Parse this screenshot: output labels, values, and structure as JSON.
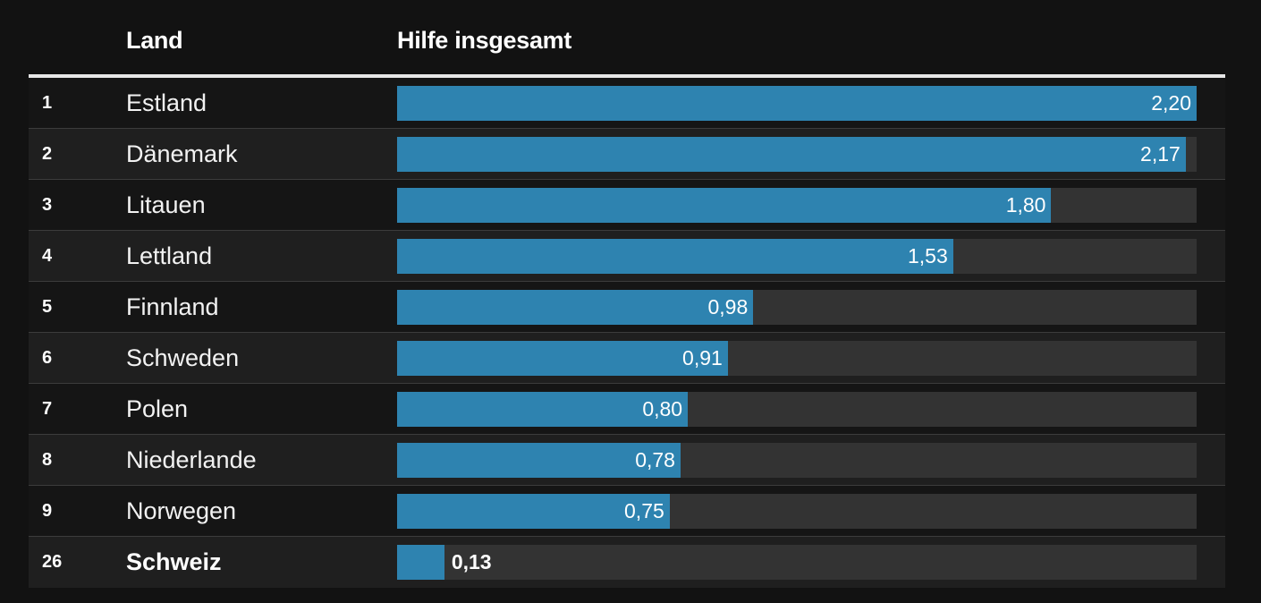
{
  "colors": {
    "background": "#121212",
    "row_odd": "#151515",
    "row_even": "#1f1f1f",
    "bar": "#2e83b0",
    "track": "#333333",
    "header_rule": "#e6e6e6"
  },
  "header": {
    "land": "Land",
    "hilfe": "Hilfe insgesamt"
  },
  "chart_data": {
    "type": "bar",
    "orientation": "horizontal",
    "title": "",
    "xlabel": "Hilfe insgesamt",
    "ylabel": "Land",
    "xlim": [
      0,
      2.2
    ],
    "rows": [
      {
        "rank": "1",
        "country": "Estland",
        "value": 2.2,
        "label": "2,20",
        "highlight": false
      },
      {
        "rank": "2",
        "country": "Dänemark",
        "value": 2.17,
        "label": "2,17",
        "highlight": false
      },
      {
        "rank": "3",
        "country": "Litauen",
        "value": 1.8,
        "label": "1,80",
        "highlight": false
      },
      {
        "rank": "4",
        "country": "Lettland",
        "value": 1.53,
        "label": "1,53",
        "highlight": false
      },
      {
        "rank": "5",
        "country": "Finnland",
        "value": 0.98,
        "label": "0,98",
        "highlight": false
      },
      {
        "rank": "6",
        "country": "Schweden",
        "value": 0.91,
        "label": "0,91",
        "highlight": false
      },
      {
        "rank": "7",
        "country": "Polen",
        "value": 0.8,
        "label": "0,80",
        "highlight": false
      },
      {
        "rank": "8",
        "country": "Niederlande",
        "value": 0.78,
        "label": "0,78",
        "highlight": false
      },
      {
        "rank": "9",
        "country": "Norwegen",
        "value": 0.75,
        "label": "0,75",
        "highlight": false
      },
      {
        "rank": "26",
        "country": "Schweiz",
        "value": 0.13,
        "label": "0,13",
        "highlight": true
      }
    ]
  }
}
